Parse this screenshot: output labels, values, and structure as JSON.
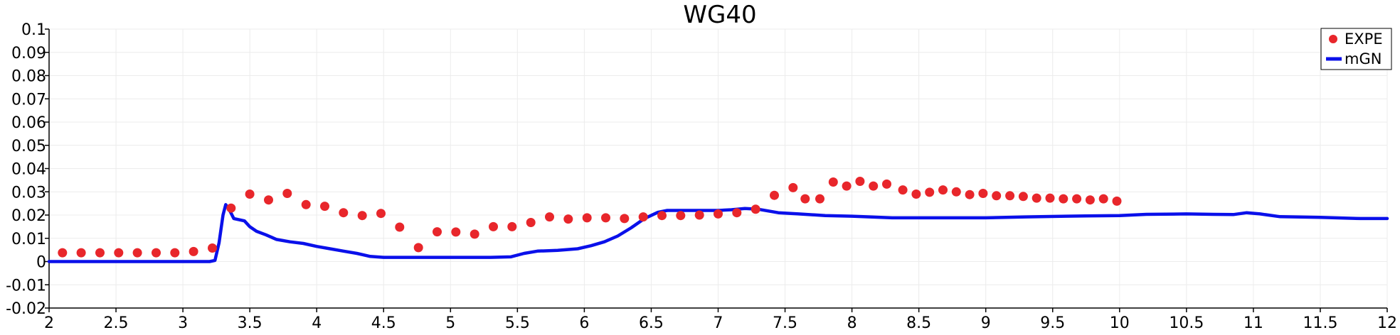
{
  "chart_data": {
    "type": "line",
    "title": "WG40",
    "xlabel": "",
    "ylabel": "",
    "xlim": [
      2,
      12
    ],
    "ylim": [
      -0.02,
      0.1
    ],
    "grid": true,
    "legend_position": "top-right",
    "x_ticks": [
      {
        "v": 2,
        "label": "2"
      },
      {
        "v": 2.5,
        "label": "2.5"
      },
      {
        "v": 3,
        "label": "3"
      },
      {
        "v": 3.5,
        "label": "3.5"
      },
      {
        "v": 4,
        "label": "4"
      },
      {
        "v": 4.5,
        "label": "4.5"
      },
      {
        "v": 5,
        "label": "5"
      },
      {
        "v": 5.5,
        "label": "5.5"
      },
      {
        "v": 6,
        "label": "6"
      },
      {
        "v": 6.5,
        "label": "6.5"
      },
      {
        "v": 7,
        "label": "7"
      },
      {
        "v": 7.5,
        "label": "7.5"
      },
      {
        "v": 8,
        "label": "8"
      },
      {
        "v": 8.5,
        "label": "8.5"
      },
      {
        "v": 9,
        "label": "9"
      },
      {
        "v": 9.5,
        "label": "9.5"
      },
      {
        "v": 10,
        "label": "10"
      },
      {
        "v": 10.5,
        "label": "10.5"
      },
      {
        "v": 11,
        "label": "11"
      },
      {
        "v": 11.5,
        "label": "11.5"
      },
      {
        "v": 12,
        "label": "12"
      }
    ],
    "y_ticks": [
      {
        "v": -0.02,
        "label": "-0.02"
      },
      {
        "v": -0.01,
        "label": "-0.01"
      },
      {
        "v": 0,
        "label": "0"
      },
      {
        "v": 0.01,
        "label": "0.01"
      },
      {
        "v": 0.02,
        "label": "0.02"
      },
      {
        "v": 0.03,
        "label": "0.03"
      },
      {
        "v": 0.04,
        "label": "0.04"
      },
      {
        "v": 0.05,
        "label": "0.05"
      },
      {
        "v": 0.06,
        "label": "0.06"
      },
      {
        "v": 0.07,
        "label": "0.07"
      },
      {
        "v": 0.08,
        "label": "0.08"
      },
      {
        "v": 0.09,
        "label": "0.09"
      },
      {
        "v": 0.1,
        "label": "0.1"
      }
    ],
    "series": [
      {
        "name": "EXPE",
        "kind": "scatter",
        "color": "#e8262b",
        "points": [
          [
            2.1,
            0.0038
          ],
          [
            2.24,
            0.0038
          ],
          [
            2.38,
            0.0038
          ],
          [
            2.52,
            0.0038
          ],
          [
            2.66,
            0.0038
          ],
          [
            2.8,
            0.0038
          ],
          [
            2.94,
            0.0038
          ],
          [
            3.08,
            0.0043
          ],
          [
            3.22,
            0.0058
          ],
          [
            3.36,
            0.023
          ],
          [
            3.5,
            0.029
          ],
          [
            3.64,
            0.0265
          ],
          [
            3.78,
            0.0293
          ],
          [
            3.92,
            0.0245
          ],
          [
            4.06,
            0.0238
          ],
          [
            4.2,
            0.021
          ],
          [
            4.34,
            0.0198
          ],
          [
            4.48,
            0.0207
          ],
          [
            4.62,
            0.0148
          ],
          [
            4.76,
            0.006
          ],
          [
            4.9,
            0.0128
          ],
          [
            5.04,
            0.0127
          ],
          [
            5.18,
            0.0118
          ],
          [
            5.32,
            0.015
          ],
          [
            5.46,
            0.015
          ],
          [
            5.6,
            0.0168
          ],
          [
            5.74,
            0.0192
          ],
          [
            5.88,
            0.0183
          ],
          [
            6.02,
            0.0188
          ],
          [
            6.16,
            0.0188
          ],
          [
            6.3,
            0.0185
          ],
          [
            6.44,
            0.0192
          ],
          [
            6.58,
            0.0198
          ],
          [
            6.72,
            0.0198
          ],
          [
            6.86,
            0.02
          ],
          [
            7.0,
            0.0205
          ],
          [
            7.14,
            0.021
          ],
          [
            7.28,
            0.0225
          ],
          [
            7.42,
            0.0285
          ],
          [
            7.56,
            0.0318
          ],
          [
            7.65,
            0.027
          ],
          [
            7.76,
            0.027
          ],
          [
            7.86,
            0.0342
          ],
          [
            7.96,
            0.0325
          ],
          [
            8.06,
            0.0345
          ],
          [
            8.16,
            0.0325
          ],
          [
            8.26,
            0.0333
          ],
          [
            8.38,
            0.0308
          ],
          [
            8.48,
            0.029
          ],
          [
            8.58,
            0.0298
          ],
          [
            8.68,
            0.0308
          ],
          [
            8.78,
            0.03
          ],
          [
            8.88,
            0.0288
          ],
          [
            8.98,
            0.0293
          ],
          [
            9.08,
            0.0283
          ],
          [
            9.18,
            0.0283
          ],
          [
            9.28,
            0.028
          ],
          [
            9.38,
            0.0273
          ],
          [
            9.48,
            0.0273
          ],
          [
            9.58,
            0.027
          ],
          [
            9.68,
            0.027
          ],
          [
            9.78,
            0.0265
          ],
          [
            9.88,
            0.027
          ],
          [
            9.98,
            0.026
          ]
        ]
      },
      {
        "name": "mGN",
        "kind": "line",
        "color": "#0a10ea",
        "points": [
          [
            2.0,
            0.0
          ],
          [
            3.2,
            0.0
          ],
          [
            3.24,
            0.0005
          ],
          [
            3.27,
            0.008
          ],
          [
            3.3,
            0.02
          ],
          [
            3.32,
            0.0245
          ],
          [
            3.35,
            0.022
          ],
          [
            3.38,
            0.0185
          ],
          [
            3.42,
            0.018
          ],
          [
            3.46,
            0.0175
          ],
          [
            3.5,
            0.015
          ],
          [
            3.55,
            0.013
          ],
          [
            3.62,
            0.0115
          ],
          [
            3.7,
            0.0095
          ],
          [
            3.8,
            0.0085
          ],
          [
            3.9,
            0.0078
          ],
          [
            4.0,
            0.0065
          ],
          [
            4.1,
            0.0055
          ],
          [
            4.2,
            0.0045
          ],
          [
            4.3,
            0.0035
          ],
          [
            4.4,
            0.0022
          ],
          [
            4.5,
            0.0018
          ],
          [
            4.7,
            0.0018
          ],
          [
            5.0,
            0.0018
          ],
          [
            5.3,
            0.0018
          ],
          [
            5.45,
            0.002
          ],
          [
            5.55,
            0.0035
          ],
          [
            5.65,
            0.0045
          ],
          [
            5.8,
            0.0048
          ],
          [
            5.95,
            0.0055
          ],
          [
            6.05,
            0.0068
          ],
          [
            6.15,
            0.0085
          ],
          [
            6.25,
            0.011
          ],
          [
            6.35,
            0.0145
          ],
          [
            6.45,
            0.0185
          ],
          [
            6.55,
            0.0212
          ],
          [
            6.62,
            0.022
          ],
          [
            6.8,
            0.022
          ],
          [
            7.0,
            0.022
          ],
          [
            7.1,
            0.0223
          ],
          [
            7.2,
            0.0228
          ],
          [
            7.3,
            0.0225
          ],
          [
            7.45,
            0.021
          ],
          [
            7.6,
            0.0205
          ],
          [
            7.8,
            0.0198
          ],
          [
            8.0,
            0.0195
          ],
          [
            8.3,
            0.0188
          ],
          [
            8.7,
            0.0188
          ],
          [
            9.0,
            0.0188
          ],
          [
            9.3,
            0.0192
          ],
          [
            9.6,
            0.0195
          ],
          [
            10.0,
            0.0198
          ],
          [
            10.2,
            0.0203
          ],
          [
            10.5,
            0.0205
          ],
          [
            10.7,
            0.0203
          ],
          [
            10.85,
            0.0202
          ],
          [
            10.95,
            0.021
          ],
          [
            11.05,
            0.0205
          ],
          [
            11.2,
            0.0193
          ],
          [
            11.5,
            0.019
          ],
          [
            11.8,
            0.0185
          ],
          [
            12.0,
            0.0185
          ]
        ]
      }
    ]
  }
}
